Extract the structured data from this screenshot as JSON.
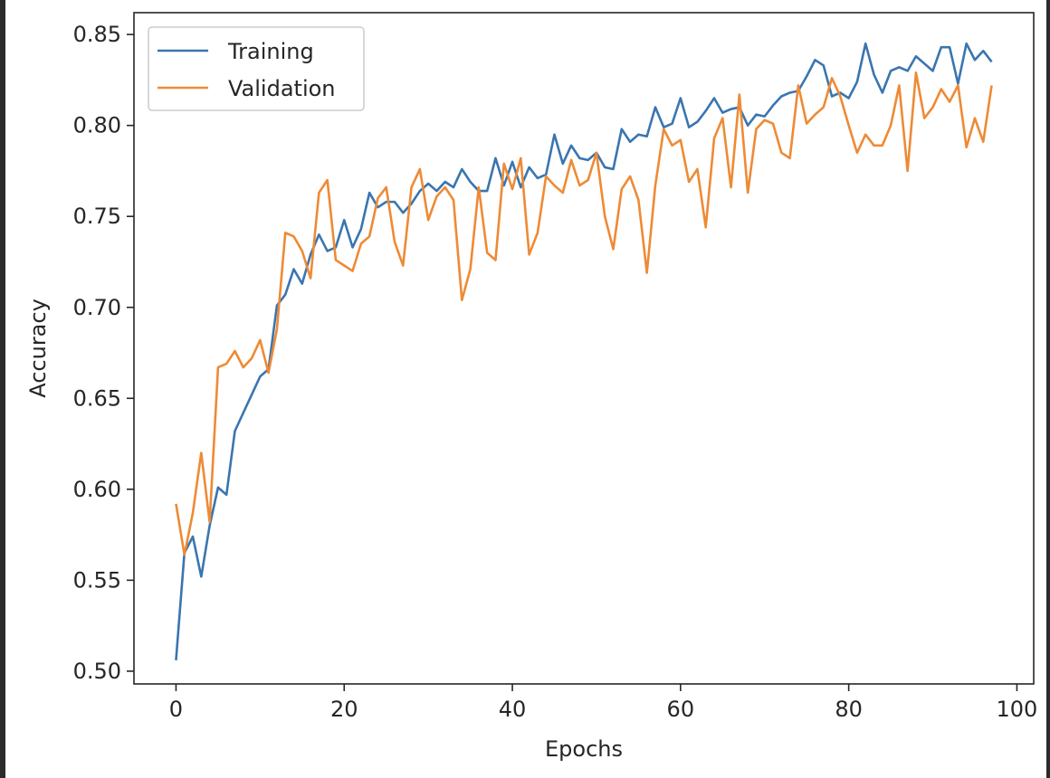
{
  "chart_data": {
    "type": "line",
    "title": "",
    "xlabel": "Epochs",
    "ylabel": "Accuracy",
    "xlim": [
      -5,
      102
    ],
    "ylim": [
      0.493,
      0.862
    ],
    "xticks": [
      0,
      20,
      40,
      60,
      80,
      100
    ],
    "yticks": [
      0.5,
      0.55,
      0.6,
      0.65,
      0.7,
      0.75,
      0.8,
      0.85
    ],
    "xtick_labels": [
      "0",
      "20",
      "40",
      "60",
      "80",
      "100"
    ],
    "ytick_labels": [
      "0.50",
      "0.55",
      "0.60",
      "0.65",
      "0.70",
      "0.75",
      "0.80",
      "0.85"
    ],
    "grid": false,
    "legend": {
      "placement": "top-left",
      "entries": [
        "Training",
        "Validation"
      ]
    },
    "series": [
      {
        "name": "Training",
        "color": "#3a75b0",
        "values": [
          0.506,
          0.565,
          0.574,
          0.552,
          0.58,
          0.601,
          0.597,
          0.632,
          0.642,
          0.652,
          0.662,
          0.666,
          0.701,
          0.707,
          0.721,
          0.713,
          0.729,
          0.74,
          0.731,
          0.733,
          0.748,
          0.733,
          0.743,
          0.763,
          0.755,
          0.758,
          0.758,
          0.752,
          0.757,
          0.764,
          0.768,
          0.764,
          0.769,
          0.766,
          0.776,
          0.769,
          0.764,
          0.764,
          0.782,
          0.767,
          0.78,
          0.766,
          0.777,
          0.771,
          0.773,
          0.795,
          0.779,
          0.789,
          0.782,
          0.781,
          0.785,
          0.777,
          0.776,
          0.798,
          0.791,
          0.795,
          0.794,
          0.81,
          0.799,
          0.801,
          0.815,
          0.799,
          0.802,
          0.808,
          0.815,
          0.807,
          0.809,
          0.81,
          0.8,
          0.806,
          0.805,
          0.811,
          0.816,
          0.818,
          0.819,
          0.827,
          0.836,
          0.833,
          0.816,
          0.818,
          0.815,
          0.824,
          0.845,
          0.828,
          0.818,
          0.83,
          0.832,
          0.83,
          0.838,
          0.834,
          0.83,
          0.843,
          0.843,
          0.823,
          0.845,
          0.836,
          0.841,
          0.835
        ]
      },
      {
        "name": "Validation",
        "color": "#ee8a35",
        "values": [
          0.592,
          0.564,
          0.587,
          0.62,
          0.582,
          0.667,
          0.669,
          0.676,
          0.667,
          0.672,
          0.682,
          0.664,
          0.688,
          0.741,
          0.739,
          0.731,
          0.716,
          0.763,
          0.77,
          0.726,
          0.723,
          0.72,
          0.735,
          0.739,
          0.76,
          0.766,
          0.736,
          0.723,
          0.766,
          0.776,
          0.748,
          0.761,
          0.766,
          0.759,
          0.704,
          0.721,
          0.766,
          0.73,
          0.726,
          0.779,
          0.765,
          0.782,
          0.729,
          0.741,
          0.772,
          0.767,
          0.763,
          0.781,
          0.767,
          0.77,
          0.785,
          0.75,
          0.732,
          0.765,
          0.772,
          0.759,
          0.719,
          0.767,
          0.798,
          0.789,
          0.792,
          0.769,
          0.776,
          0.744,
          0.793,
          0.804,
          0.766,
          0.817,
          0.763,
          0.798,
          0.803,
          0.801,
          0.785,
          0.782,
          0.822,
          0.801,
          0.806,
          0.81,
          0.826,
          0.816,
          0.8,
          0.785,
          0.795,
          0.789,
          0.789,
          0.8,
          0.822,
          0.775,
          0.829,
          0.804,
          0.81,
          0.82,
          0.813,
          0.822,
          0.788,
          0.804,
          0.791,
          0.822
        ]
      }
    ]
  }
}
